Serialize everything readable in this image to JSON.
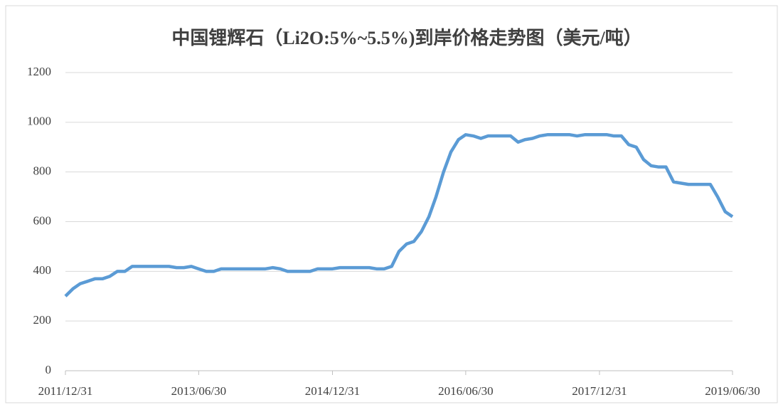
{
  "chart_data": {
    "type": "line",
    "title": "中国锂辉石（Li2O:5%~5.5%)到岸价格走势图（美元/吨）",
    "x": [
      "2011/12/31",
      "2012/01/31",
      "2012/02/29",
      "2012/03/31",
      "2012/04/30",
      "2012/05/31",
      "2012/06/30",
      "2012/07/31",
      "2012/08/31",
      "2012/09/30",
      "2012/10/31",
      "2012/11/30",
      "2012/12/31",
      "2013/01/31",
      "2013/02/28",
      "2013/03/31",
      "2013/04/30",
      "2013/05/31",
      "2013/06/30",
      "2013/07/31",
      "2013/08/31",
      "2013/09/30",
      "2013/10/31",
      "2013/11/30",
      "2013/12/31",
      "2014/01/31",
      "2014/02/28",
      "2014/03/31",
      "2014/04/30",
      "2014/05/31",
      "2014/06/30",
      "2014/07/31",
      "2014/08/31",
      "2014/09/30",
      "2014/10/31",
      "2014/11/30",
      "2014/12/31",
      "2015/01/31",
      "2015/02/28",
      "2015/03/31",
      "2015/04/30",
      "2015/05/31",
      "2015/06/30",
      "2015/07/31",
      "2015/08/31",
      "2015/09/30",
      "2015/10/31",
      "2015/11/30",
      "2015/12/31",
      "2016/01/31",
      "2016/02/29",
      "2016/03/31",
      "2016/04/30",
      "2016/05/31",
      "2016/06/30",
      "2016/07/31",
      "2016/08/31",
      "2016/09/30",
      "2016/10/31",
      "2016/11/30",
      "2016/12/31",
      "2017/01/31",
      "2017/02/28",
      "2017/03/31",
      "2017/04/30",
      "2017/05/31",
      "2017/06/30",
      "2017/07/31",
      "2017/08/31",
      "2017/09/30",
      "2017/10/31",
      "2017/11/30",
      "2017/12/31",
      "2018/01/31",
      "2018/02/28",
      "2018/03/31",
      "2018/04/30",
      "2018/05/31",
      "2018/06/30",
      "2018/07/31",
      "2018/08/31",
      "2018/09/30",
      "2018/10/31",
      "2018/11/30",
      "2018/12/31",
      "2019/01/31",
      "2019/02/28",
      "2019/03/31",
      "2019/04/30",
      "2019/05/31",
      "2019/06/30"
    ],
    "series": [
      {
        "name": "到岸价格",
        "color": "#5b9bd5",
        "values": [
          300,
          330,
          350,
          360,
          370,
          370,
          380,
          400,
          400,
          420,
          420,
          420,
          420,
          420,
          420,
          415,
          415,
          420,
          410,
          400,
          400,
          410,
          410,
          410,
          410,
          410,
          410,
          410,
          415,
          410,
          400,
          400,
          400,
          400,
          410,
          410,
          410,
          415,
          415,
          415,
          415,
          415,
          410,
          410,
          420,
          480,
          510,
          520,
          560,
          620,
          700,
          800,
          880,
          930,
          950,
          945,
          935,
          945,
          945,
          945,
          945,
          920,
          930,
          935,
          945,
          950,
          950,
          950,
          950,
          945,
          950,
          950,
          950,
          950,
          945,
          945,
          910,
          900,
          850,
          825,
          820,
          820,
          760,
          755,
          750,
          750,
          750,
          750,
          700,
          640,
          620
        ]
      }
    ],
    "xlim": [
      "2011/12/31",
      "2019/06/30"
    ],
    "xticks": [
      "2011/12/31",
      "2013/06/30",
      "2014/12/31",
      "2016/06/30",
      "2017/12/31",
      "2019/06/30"
    ],
    "ylim": [
      0,
      1200
    ],
    "yticks": [
      0,
      200,
      400,
      600,
      800,
      1000,
      1200
    ],
    "grid": true
  }
}
